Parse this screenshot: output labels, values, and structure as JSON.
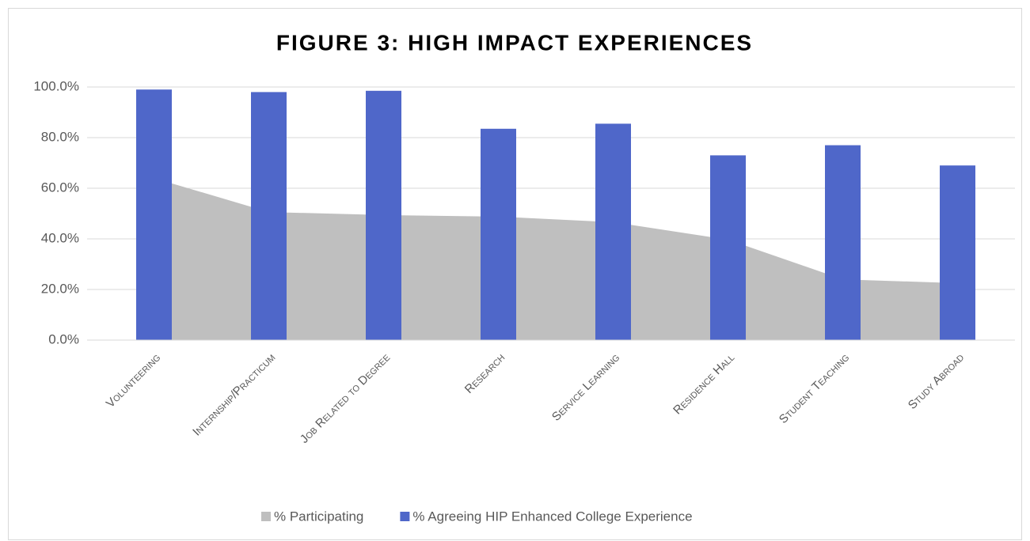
{
  "chart_data": {
    "type": "bar_area",
    "title": "FIGURE 3: HIGH IMPACT EXPERIENCES",
    "categories": [
      "Volunteering",
      "Internship/Practicum",
      "Job Related to Degree",
      "Research",
      "Service Learning",
      "Residence Hall",
      "Student Teaching",
      "Study Abroad"
    ],
    "series": [
      {
        "name": "% Participating",
        "type": "area",
        "color": "#bfbfbf",
        "values": [
          64,
          50.6,
          49.4,
          48.8,
          46.6,
          39.7,
          24,
          22.5
        ]
      },
      {
        "name": "% Agreeing HIP Enhanced College Experience",
        "type": "bar",
        "color": "#4f67c9",
        "values": [
          99,
          98,
          98.5,
          83.5,
          85.5,
          73,
          77,
          69
        ]
      }
    ],
    "ylim": [
      0,
      100
    ],
    "yticks": [
      {
        "value": 0,
        "label": "0.0%"
      },
      {
        "value": 20,
        "label": "20.0%"
      },
      {
        "value": 40,
        "label": "40.0%"
      },
      {
        "value": 60,
        "label": "60.0%"
      },
      {
        "value": 80,
        "label": "80.0%"
      },
      {
        "value": 100,
        "label": "100.0%"
      }
    ],
    "grid": true,
    "legend": "bottom"
  }
}
